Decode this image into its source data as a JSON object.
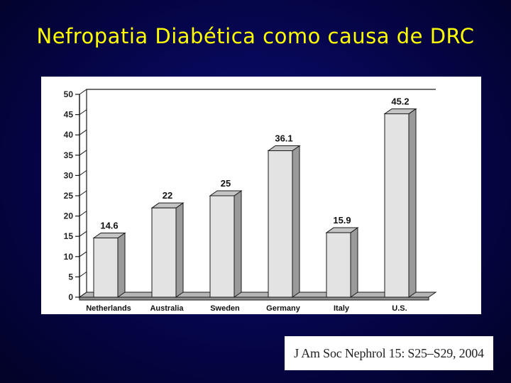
{
  "slide": {
    "title": "Nefropatia Diabética como causa de DRC"
  },
  "citation": {
    "text": "J Am Soc Nephrol 15: S25–S29, 2004"
  },
  "chart_data": {
    "type": "bar",
    "categories": [
      "Netherlands",
      "Australia",
      "Sweden",
      "Germany",
      "Italy",
      "U.S."
    ],
    "values": [
      14.6,
      22,
      25,
      36.1,
      15.9,
      45.2
    ],
    "data_labels": [
      "14.6",
      "22",
      "25",
      "36.1",
      "15.9",
      "45.2"
    ],
    "ylim": [
      0,
      50
    ],
    "yticks": [
      0,
      5,
      10,
      15,
      20,
      25,
      30,
      35,
      40,
      45,
      50
    ],
    "title": "",
    "xlabel": "",
    "ylabel": "",
    "grid": false,
    "style": "3d",
    "colors": {
      "bar_front": "#e3e3e3",
      "bar_side": "#9a9a9a",
      "bar_top": "#c4c4c4",
      "floor": "#b5b5b5",
      "outline": "#1a1a1a"
    }
  }
}
